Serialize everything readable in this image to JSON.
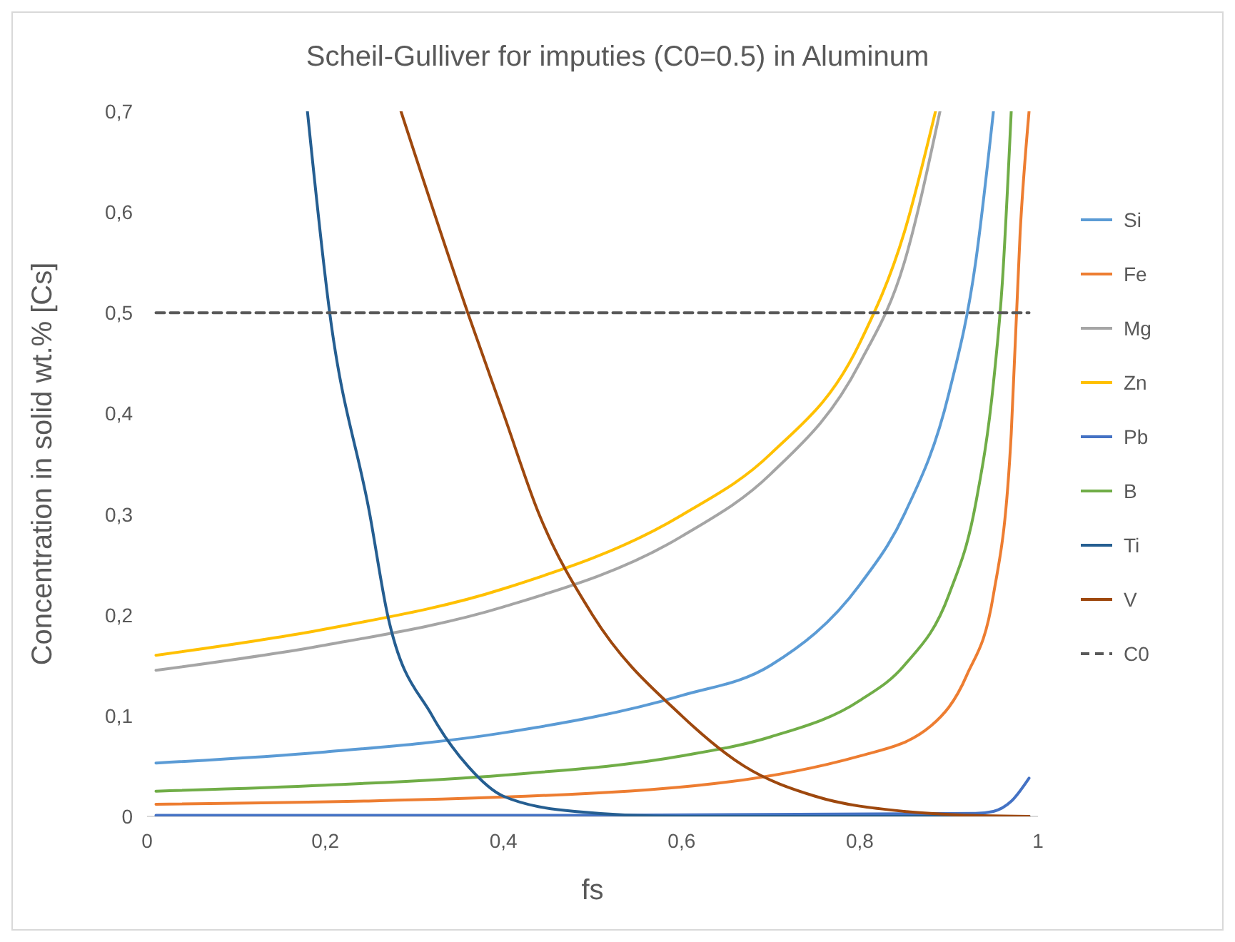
{
  "chart_data": {
    "type": "line",
    "title": "Scheil-Gulliver for imputies (C0=0.5) in Aluminum",
    "xlabel": "fs",
    "ylabel": "Concentration in solid wt.% [Cs]",
    "xlim": [
      0,
      1
    ],
    "ylim": [
      0,
      0.7
    ],
    "xticks": [
      0,
      {
        "value": 0.2,
        "label": "0,2"
      },
      {
        "value": 0.4,
        "label": "0,4"
      },
      {
        "value": 0.6,
        "label": "0,6"
      },
      {
        "value": 0.8,
        "label": "0,8"
      },
      1
    ],
    "yticks": [
      0,
      {
        "value": 0.1,
        "label": "0,1"
      },
      {
        "value": 0.2,
        "label": "0,2"
      },
      {
        "value": 0.3,
        "label": "0,3"
      },
      {
        "value": 0.4,
        "label": "0,4"
      },
      {
        "value": 0.5,
        "label": "0,5"
      },
      {
        "value": 0.6,
        "label": "0,6"
      },
      {
        "value": 0.7,
        "label": "0,7"
      }
    ],
    "grid": false,
    "legend": "right",
    "series": [
      {
        "name": "Si",
        "color": "#5b9bd5",
        "x": [
          0.01,
          0.2,
          0.4,
          0.6,
          0.7,
          0.8,
          0.85,
          0.9,
          0.93,
          0.95
        ],
        "values": [
          0.053,
          0.064,
          0.083,
          0.12,
          0.15,
          0.23,
          0.3,
          0.42,
          0.55,
          0.7
        ]
      },
      {
        "name": "Fe",
        "color": "#ed7d31",
        "x": [
          0.01,
          0.5,
          0.8,
          0.88,
          0.92,
          0.95,
          0.97,
          0.98,
          0.99
        ],
        "values": [
          0.012,
          0.023,
          0.06,
          0.09,
          0.14,
          0.22,
          0.38,
          0.58,
          0.7
        ]
      },
      {
        "name": "Mg",
        "color": "#a5a5a5",
        "x": [
          0.01,
          0.2,
          0.4,
          0.6,
          0.7,
          0.8,
          0.85,
          0.89
        ],
        "values": [
          0.145,
          0.17,
          0.208,
          0.278,
          0.34,
          0.45,
          0.55,
          0.7
        ]
      },
      {
        "name": "Zn",
        "color": "#ffc000",
        "x": [
          0.01,
          0.2,
          0.4,
          0.6,
          0.7,
          0.8,
          0.85,
          0.885
        ],
        "values": [
          0.16,
          0.186,
          0.226,
          0.299,
          0.36,
          0.47,
          0.58,
          0.7
        ]
      },
      {
        "name": "Pb",
        "color": "#4472c4",
        "x": [
          0.01,
          0.5,
          0.93,
          0.95,
          0.97,
          0.99
        ],
        "values": [
          0.001,
          0.001,
          0.003,
          0.005,
          0.015,
          0.038
        ]
      },
      {
        "name": "B",
        "color": "#70ad47",
        "x": [
          0.01,
          0.2,
          0.4,
          0.6,
          0.7,
          0.8,
          0.85,
          0.9,
          0.93,
          0.95,
          0.96,
          0.97
        ],
        "values": [
          0.025,
          0.031,
          0.041,
          0.06,
          0.079,
          0.115,
          0.15,
          0.22,
          0.31,
          0.43,
          0.53,
          0.7
        ]
      },
      {
        "name": "Ti",
        "color": "#255e91",
        "x": [
          0.18,
          0.205,
          0.25,
          0.27,
          0.32,
          0.36,
          0.4,
          0.48,
          0.6,
          0.99
        ],
        "values": [
          0.7,
          0.5,
          0.3,
          0.2,
          0.1,
          0.05,
          0.02,
          0.005,
          0,
          0
        ]
      },
      {
        "name": "V",
        "color": "#9e480e",
        "x": [
          0.285,
          0.36,
          0.4,
          0.44,
          0.5,
          0.6,
          0.67,
          0.75,
          0.85,
          0.9,
          0.99
        ],
        "values": [
          0.7,
          0.5,
          0.4,
          0.3,
          0.2,
          0.1,
          0.05,
          0.02,
          0.005,
          0.002,
          0
        ]
      },
      {
        "name": "C0",
        "color": "#595959",
        "line_style": "dashed",
        "x": [
          0.01,
          0.99
        ],
        "values": [
          0.5,
          0.5
        ]
      }
    ]
  }
}
